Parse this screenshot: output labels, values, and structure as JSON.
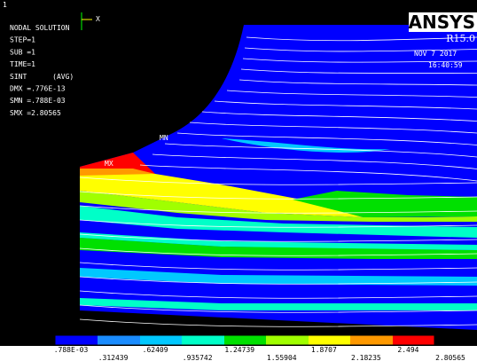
{
  "window": {
    "number": "1",
    "axis": "X"
  },
  "header": {
    "lines": [
      "NODAL SOLUTION",
      "STEP=1",
      "SUB =1",
      "TIME=1",
      "SINT      (AVG)",
      "DMX =.776E-13",
      "SMN =.788E-03",
      "SMX =2.80565"
    ]
  },
  "logo": {
    "name": "ANSYS",
    "release": "R15.0",
    "date": "NOV  7 2017",
    "time": "16:40:59"
  },
  "markers": {
    "min": "MN",
    "max": "MX"
  },
  "legend": {
    "top": [
      ".788E-03",
      ".62409",
      "1.24739",
      "1.8707",
      "2.494"
    ],
    "bottom": [
      ".312439",
      ".935742",
      "1.55904",
      "2.18235",
      "2.80565"
    ]
  }
}
